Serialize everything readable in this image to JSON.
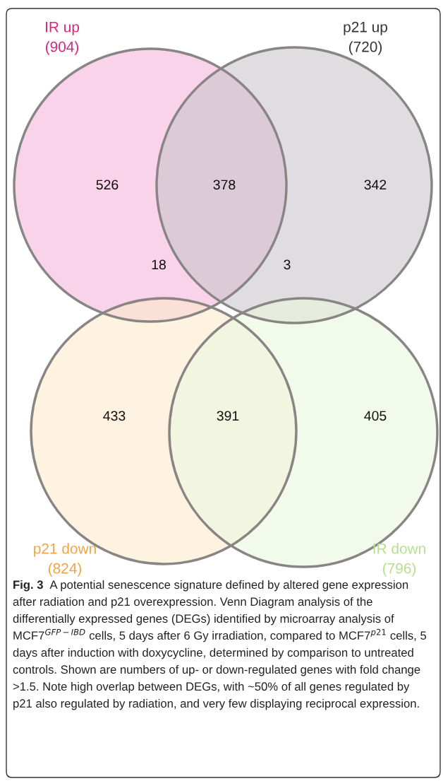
{
  "chart_data": {
    "type": "other",
    "categories": [
      null,
      null,
      null,
      null,
      null,
      null,
      null,
      null
    ],
    "values": [
      526,
      378,
      342,
      18,
      3,
      433,
      391,
      405
    ],
    "data_labels": true,
    "annotations": [
      "IR up",
      "(904)",
      "p21 up",
      "(720)",
      "p21 down",
      "(824)",
      "IR down",
      "(796)",
      "Fig. 3",
      "A potential senescence signature defined by altered gene expression after radiation and p21 overexpression. Venn Diagram analysis of the differentially expressed genes (DEGs) identified by microarray analysis of MCF7$^{GFP−IBD}$ cells, 5 days after 6 Gy irradiation, compared to MCF7$^{p21}$ cells, 5 days after induction with doxycycline, determined by comparison to untreated controls. Shown are numbers of up- or down-regulated genes with fold change >1.5. Note high overlap between DEGs, with ~50% of all genes regulated by p21 also regulated by radiation, and very few displaying reciprocal expression."
    ]
  }
}
